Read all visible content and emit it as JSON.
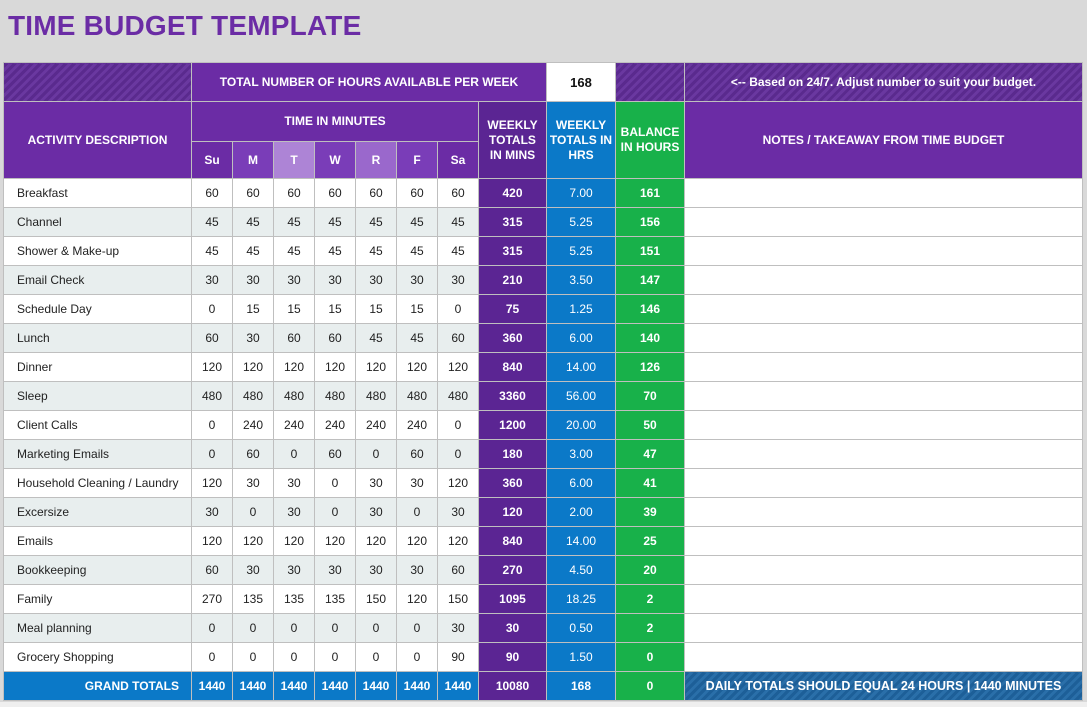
{
  "title": "TIME BUDGET TEMPLATE",
  "hours_row": {
    "label": "TOTAL NUMBER OF HOURS AVAILABLE PER WEEK",
    "value": "168",
    "note": "<-- Based on 24/7.  Adjust number to suit your budget."
  },
  "headers": {
    "activity": "ACTIVITY DESCRIPTION",
    "time_in_minutes": "TIME IN MINUTES",
    "weekly_totals_mins": [
      "WEEKLY",
      "TOTALS",
      "IN MINS"
    ],
    "weekly_totals_hrs": [
      "WEEKLY",
      "TOTALS IN",
      "HRS"
    ],
    "balance": [
      "BALANCE",
      "IN HOURS"
    ],
    "notes": "NOTES / TAKEAWAY FROM TIME BUDGET",
    "days": [
      "Su",
      "M",
      "T",
      "W",
      "R",
      "F",
      "Sa"
    ]
  },
  "rows": [
    {
      "activity": "Breakfast",
      "mins": [
        "60",
        "60",
        "60",
        "60",
        "60",
        "60",
        "60"
      ],
      "total_mins": "420",
      "total_hrs": "7.00",
      "balance": "161"
    },
    {
      "activity": "Channel",
      "mins": [
        "45",
        "45",
        "45",
        "45",
        "45",
        "45",
        "45"
      ],
      "total_mins": "315",
      "total_hrs": "5.25",
      "balance": "156"
    },
    {
      "activity": "Shower & Make-up",
      "mins": [
        "45",
        "45",
        "45",
        "45",
        "45",
        "45",
        "45"
      ],
      "total_mins": "315",
      "total_hrs": "5.25",
      "balance": "151"
    },
    {
      "activity": "Email Check",
      "mins": [
        "30",
        "30",
        "30",
        "30",
        "30",
        "30",
        "30"
      ],
      "total_mins": "210",
      "total_hrs": "3.50",
      "balance": "147"
    },
    {
      "activity": "Schedule Day",
      "mins": [
        "0",
        "15",
        "15",
        "15",
        "15",
        "15",
        "0"
      ],
      "total_mins": "75",
      "total_hrs": "1.25",
      "balance": "146"
    },
    {
      "activity": "Lunch",
      "mins": [
        "60",
        "30",
        "60",
        "60",
        "45",
        "45",
        "60"
      ],
      "total_mins": "360",
      "total_hrs": "6.00",
      "balance": "140"
    },
    {
      "activity": "Dinner",
      "mins": [
        "120",
        "120",
        "120",
        "120",
        "120",
        "120",
        "120"
      ],
      "total_mins": "840",
      "total_hrs": "14.00",
      "balance": "126"
    },
    {
      "activity": "Sleep",
      "mins": [
        "480",
        "480",
        "480",
        "480",
        "480",
        "480",
        "480"
      ],
      "total_mins": "3360",
      "total_hrs": "56.00",
      "balance": "70"
    },
    {
      "activity": "Client Calls",
      "mins": [
        "0",
        "240",
        "240",
        "240",
        "240",
        "240",
        "0"
      ],
      "total_mins": "1200",
      "total_hrs": "20.00",
      "balance": "50"
    },
    {
      "activity": "Marketing Emails",
      "mins": [
        "0",
        "60",
        "0",
        "60",
        "0",
        "60",
        "0"
      ],
      "total_mins": "180",
      "total_hrs": "3.00",
      "balance": "47"
    },
    {
      "activity": "Household Cleaning / Laundry",
      "mins": [
        "120",
        "30",
        "30",
        "0",
        "30",
        "30",
        "120"
      ],
      "total_mins": "360",
      "total_hrs": "6.00",
      "balance": "41"
    },
    {
      "activity": "Excersize",
      "mins": [
        "30",
        "0",
        "30",
        "0",
        "30",
        "0",
        "30"
      ],
      "total_mins": "120",
      "total_hrs": "2.00",
      "balance": "39"
    },
    {
      "activity": "Emails",
      "mins": [
        "120",
        "120",
        "120",
        "120",
        "120",
        "120",
        "120"
      ],
      "total_mins": "840",
      "total_hrs": "14.00",
      "balance": "25"
    },
    {
      "activity": "Bookkeeping",
      "mins": [
        "60",
        "30",
        "30",
        "30",
        "30",
        "30",
        "60"
      ],
      "total_mins": "270",
      "total_hrs": "4.50",
      "balance": "20"
    },
    {
      "activity": "Family",
      "mins": [
        "270",
        "135",
        "135",
        "135",
        "150",
        "120",
        "150"
      ],
      "total_mins": "1095",
      "total_hrs": "18.25",
      "balance": "2"
    },
    {
      "activity": "Meal planning",
      "mins": [
        "0",
        "0",
        "0",
        "0",
        "0",
        "0",
        "30"
      ],
      "total_mins": "30",
      "total_hrs": "0.50",
      "balance": "2"
    },
    {
      "activity": "Grocery Shopping",
      "mins": [
        "0",
        "0",
        "0",
        "0",
        "0",
        "0",
        "90"
      ],
      "total_mins": "90",
      "total_hrs": "1.50",
      "balance": "0"
    }
  ],
  "grand_totals": {
    "label": "GRAND TOTALS",
    "mins": [
      "1440",
      "1440",
      "1440",
      "1440",
      "1440",
      "1440",
      "1440"
    ],
    "total_mins": "10080",
    "total_hrs": "168",
    "balance": "0",
    "note": "DAILY TOTALS SHOULD EQUAL 24 HOURS  |  1440 MINUTES"
  },
  "colors": {
    "purple": "#6b2ca5",
    "dark_purple": "#5b2593",
    "blue": "#0b79c8",
    "green": "#18b14a"
  }
}
